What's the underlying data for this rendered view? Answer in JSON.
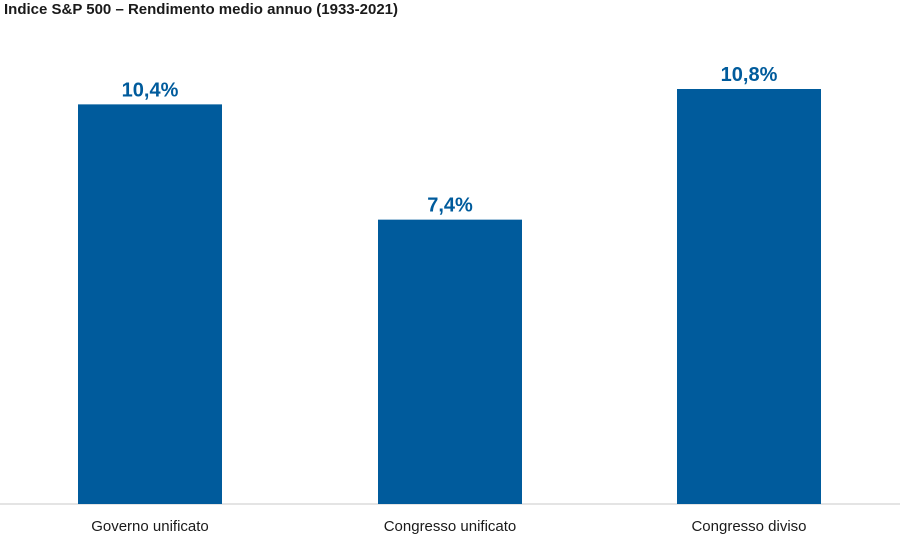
{
  "chart_data": {
    "type": "bar",
    "title": "Indice S&P 500 – Rendimento medio annuo (1933-2021)",
    "categories": [
      "Governo unificato",
      "Congresso unificato",
      "Congresso diviso"
    ],
    "values": [
      10.4,
      7.4,
      10.8
    ],
    "value_labels": [
      "10,4%",
      "7,4%",
      "10,8%"
    ],
    "xlabel": "",
    "ylabel": "",
    "ylim": [
      0,
      10.8
    ],
    "grid": false,
    "colors": {
      "bar": "#005b9c",
      "value_label": "#005b9c",
      "baseline": "#c8c8c8"
    }
  }
}
